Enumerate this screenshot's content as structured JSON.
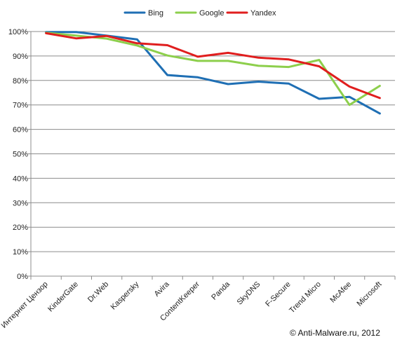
{
  "chart_data": {
    "type": "line",
    "categories": [
      "Интернет Цензор",
      "KinderGate",
      "Dr.Web",
      "Kaspersky",
      "Avira",
      "ContentKeeper",
      "Panda",
      "SkyDNS",
      "F-Secure",
      "Trend Micro",
      "McAfee",
      "Microsoft"
    ],
    "series": [
      {
        "name": "Bing",
        "color": "#1f6fb4",
        "values": [
          99.8,
          99.8,
          98.3,
          96.8,
          82.2,
          81.3,
          78.5,
          79.5,
          78.7,
          72.5,
          73.3,
          66.5
        ]
      },
      {
        "name": "Google",
        "color": "#8dcf4c",
        "values": [
          99.5,
          98.3,
          97.1,
          94.3,
          90.2,
          88.0,
          88.0,
          86.0,
          85.5,
          88.4,
          70.0,
          77.8
        ]
      },
      {
        "name": "Yandex",
        "color": "#e01e1e",
        "values": [
          99.3,
          97.2,
          98.2,
          95.2,
          94.4,
          89.7,
          91.3,
          89.3,
          88.6,
          85.8,
          77.5,
          72.8
        ]
      }
    ],
    "y_ticks": [
      "0%",
      "10%",
      "20%",
      "30%",
      "40%",
      "50%",
      "60%",
      "70%",
      "80%",
      "90%",
      "100%"
    ],
    "ylim": [
      0,
      100
    ],
    "grid": true,
    "legend_position": "top",
    "annotation": "© Anti-Malware.ru,  2012"
  }
}
